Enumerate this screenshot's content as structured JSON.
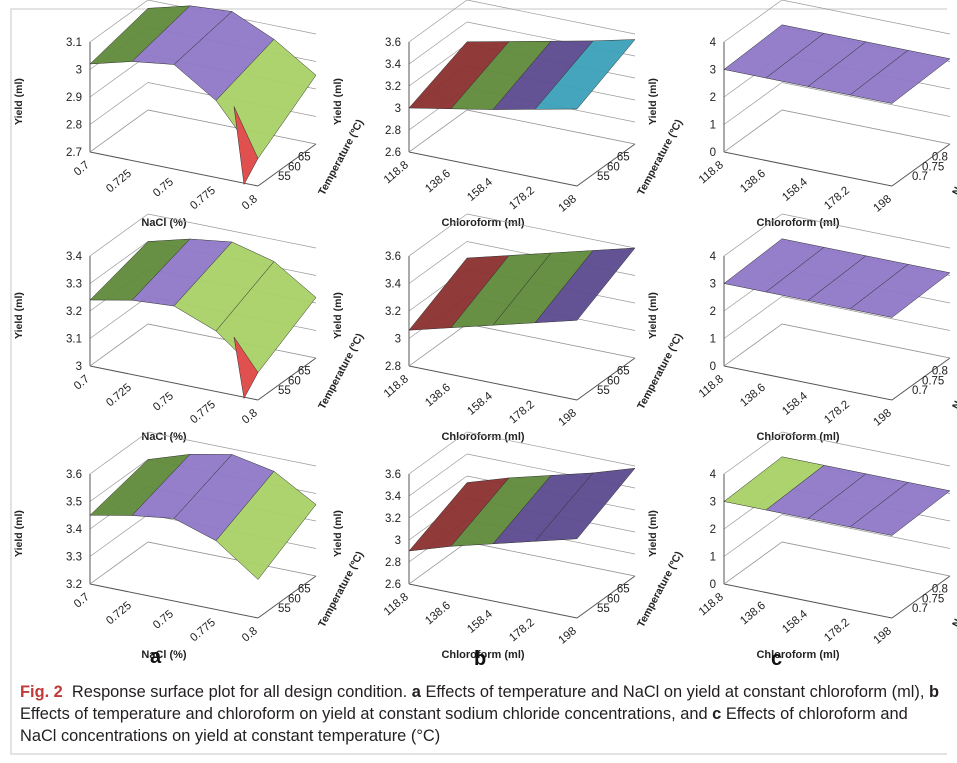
{
  "figure": {
    "column_letters": [
      "a",
      "b",
      "c"
    ],
    "caption": {
      "fig_label": "Fig. 2",
      "intro": "Response surface plot for all design condition.",
      "part_a_letter": "a",
      "part_a_text": "Effects of temperature and NaCl on yield at constant chloroform (ml),",
      "part_b_letter": "b",
      "part_b_text": "Effects of temperature and chloroform on yield at constant sodium chloride concentrations, and",
      "part_c_letter": "c",
      "part_c_text": "Effects of chloroform and NaCl concentrations on yield at constant temperature (°C)"
    }
  },
  "colors": {
    "axis_line": "#555555",
    "grid_line": "#9a9a9a",
    "surface_edge": "#2f2f2f",
    "band_colors": [
      "#8b2f2f",
      "#5f8a3a",
      "#5c4a8e",
      "#3aa0b8",
      "#8f78c8",
      "#a8d165",
      "#e0504e"
    ]
  },
  "chart_data": [
    {
      "id": "a1",
      "type": "surface",
      "ylabel": "Yield (ml)",
      "xlabel": "NaCl (%)",
      "zlabel": "Temperature (ºC)",
      "yticks": [
        "2.7",
        "2.8",
        "2.9",
        "3",
        "3.1"
      ],
      "ylim": [
        2.7,
        3.1
      ],
      "xticks": [
        "0.7",
        "0.725",
        "0.75",
        "0.775",
        "0.8"
      ],
      "zticks": [
        "55",
        "60",
        "65"
      ],
      "surface_front": [
        3.02,
        3.06,
        3.08,
        2.98,
        2.8
      ],
      "surface_back": [
        3.07,
        3.11,
        3.12,
        3.05,
        2.95
      ],
      "band_colors": [
        "#5f8a3a",
        "#8f78c8",
        "#8f78c8",
        "#a8d165"
      ],
      "accent_color": "#e0504e"
    },
    {
      "id": "b1",
      "type": "surface",
      "ylabel": "Yield (ml)",
      "xlabel": "Chloroform (ml)",
      "zlabel": "Temperature (ºC)",
      "yticks": [
        "2.6",
        "2.8",
        "3",
        "3.2",
        "3.4",
        "3.6"
      ],
      "ylim": [
        2.6,
        3.6
      ],
      "xticks": [
        "118.8",
        "138.6",
        "158.4",
        "178.2",
        "198"
      ],
      "zticks": [
        "55",
        "60",
        "65"
      ],
      "surface_front": [
        3.0,
        3.07,
        3.14,
        3.22,
        3.3
      ],
      "surface_back": [
        3.22,
        3.3,
        3.38,
        3.46,
        3.55
      ],
      "band_colors": [
        "#8b2f2f",
        "#5f8a3a",
        "#5c4a8e",
        "#3aa0b8"
      ]
    },
    {
      "id": "c1",
      "type": "surface",
      "ylabel": "Yield (ml)",
      "xlabel": "Chloroform (ml)",
      "zlabel": "NaCl (%)",
      "yticks": [
        "0",
        "1",
        "2",
        "3",
        "4"
      ],
      "ylim": [
        0,
        4
      ],
      "xticks": [
        "118.8",
        "138.6",
        "158.4",
        "178.2",
        "198"
      ],
      "zticks": [
        "0.7",
        "0.75",
        "0.8"
      ],
      "surface_front": [
        3.0,
        3.0,
        3.0,
        3.0,
        3.0
      ],
      "surface_back": [
        3.1,
        3.1,
        3.1,
        3.1,
        3.1
      ],
      "band_colors": [
        "#8f78c8",
        "#8f78c8",
        "#8f78c8",
        "#8f78c8"
      ]
    },
    {
      "id": "a2",
      "type": "surface",
      "ylabel": "Yield (ml)",
      "xlabel": "NaCl (%)",
      "zlabel": "Temperature (ºC)",
      "yticks": [
        "3",
        "3.1",
        "3.2",
        "3.3",
        "3.4"
      ],
      "ylim": [
        3.0,
        3.4
      ],
      "xticks": [
        "0.7",
        "0.725",
        "0.75",
        "0.775",
        "0.8"
      ],
      "zticks": [
        "55",
        "60",
        "65"
      ],
      "surface_front": [
        3.24,
        3.27,
        3.28,
        3.22,
        3.1
      ],
      "surface_back": [
        3.3,
        3.34,
        3.36,
        3.32,
        3.22
      ],
      "band_colors": [
        "#5f8a3a",
        "#8f78c8",
        "#a8d165",
        "#a8d165"
      ],
      "accent_color": "#e0504e"
    },
    {
      "id": "b2",
      "type": "surface",
      "ylabel": "Yield (ml)",
      "xlabel": "Chloroform (ml)",
      "zlabel": "Temperature (ºC)",
      "yticks": [
        "2.8",
        "3",
        "3.2",
        "3.4",
        "3.6"
      ],
      "ylim": [
        2.8,
        3.6
      ],
      "xticks": [
        "118.8",
        "138.6",
        "158.4",
        "178.2",
        "198"
      ],
      "zticks": [
        "55",
        "60",
        "65"
      ],
      "surface_front": [
        3.06,
        3.14,
        3.22,
        3.3,
        3.38
      ],
      "surface_back": [
        3.28,
        3.36,
        3.44,
        3.52,
        3.6
      ],
      "band_colors": [
        "#8b2f2f",
        "#5f8a3a",
        "#5f8a3a",
        "#5c4a8e"
      ]
    },
    {
      "id": "c2",
      "type": "surface",
      "ylabel": "Yield (ml)",
      "xlabel": "Chloroform (ml)",
      "zlabel": "NaCl (%)",
      "yticks": [
        "0",
        "1",
        "2",
        "3",
        "4"
      ],
      "ylim": [
        0,
        4
      ],
      "xticks": [
        "118.8",
        "138.6",
        "158.4",
        "178.2",
        "198"
      ],
      "zticks": [
        "0.7",
        "0.75",
        "0.8"
      ],
      "surface_front": [
        3.0,
        3.0,
        3.0,
        3.0,
        3.0
      ],
      "surface_back": [
        3.1,
        3.1,
        3.1,
        3.1,
        3.1
      ],
      "band_colors": [
        "#8f78c8",
        "#8f78c8",
        "#8f78c8",
        "#8f78c8"
      ]
    },
    {
      "id": "a3",
      "type": "surface",
      "ylabel": "Yield (ml)",
      "xlabel": "NaCl (%)",
      "zlabel": "Temperature (ºC)",
      "yticks": [
        "3.2",
        "3.3",
        "3.4",
        "3.5",
        "3.6"
      ],
      "ylim": [
        3.2,
        3.6
      ],
      "xticks": [
        "0.7",
        "0.725",
        "0.75",
        "0.775",
        "0.8"
      ],
      "zticks": [
        "55",
        "60",
        "65"
      ],
      "surface_front": [
        3.45,
        3.48,
        3.5,
        3.45,
        3.34
      ],
      "surface_back": [
        3.5,
        3.55,
        3.58,
        3.55,
        3.46
      ],
      "band_colors": [
        "#5f8a3a",
        "#8f78c8",
        "#8f78c8",
        "#a8d165"
      ]
    },
    {
      "id": "b3",
      "type": "surface",
      "ylabel": "Yield (ml)",
      "xlabel": "Chloroform (ml)",
      "zlabel": "Temperature (ºC)",
      "yticks": [
        "2.6",
        "2.8",
        "3",
        "3.2",
        "3.4",
        "3.6"
      ],
      "ylim": [
        2.6,
        3.6
      ],
      "xticks": [
        "118.8",
        "138.6",
        "158.4",
        "178.2",
        "198"
      ],
      "zticks": [
        "55",
        "60",
        "65"
      ],
      "surface_front": [
        2.9,
        3.02,
        3.12,
        3.22,
        3.32
      ],
      "surface_back": [
        3.14,
        3.26,
        3.36,
        3.46,
        3.58
      ],
      "band_colors": [
        "#8b2f2f",
        "#5f8a3a",
        "#5c4a8e",
        "#5c4a8e"
      ]
    },
    {
      "id": "c3",
      "type": "surface",
      "ylabel": "Yield (ml)",
      "xlabel": "Chloroform (ml)",
      "zlabel": "NaCl (%)",
      "yticks": [
        "0",
        "1",
        "2",
        "3",
        "4"
      ],
      "ylim": [
        0,
        4
      ],
      "xticks": [
        "118.8",
        "138.6",
        "158.4",
        "178.2",
        "198"
      ],
      "zticks": [
        "0.7",
        "0.75",
        "0.8"
      ],
      "surface_front": [
        3.0,
        3.0,
        3.0,
        3.0,
        3.0
      ],
      "surface_back": [
        3.1,
        3.1,
        3.1,
        3.1,
        3.1
      ],
      "band_colors": [
        "#a8d165",
        "#8f78c8",
        "#8f78c8",
        "#8f78c8"
      ]
    }
  ]
}
